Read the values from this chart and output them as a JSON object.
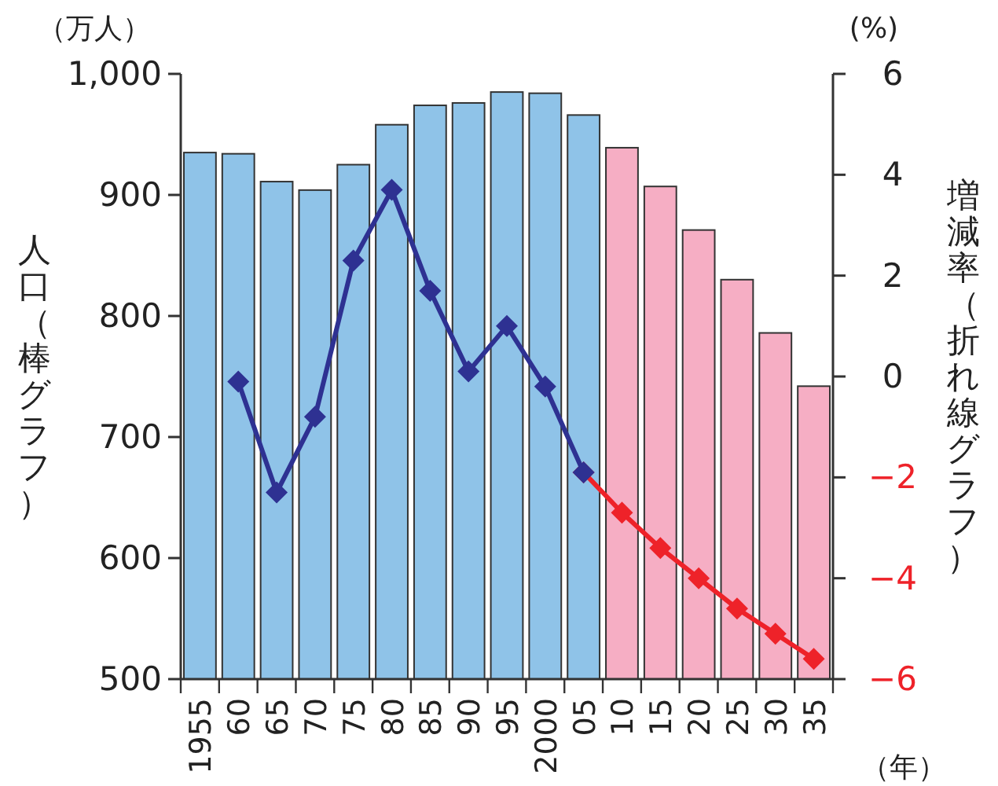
{
  "chart_data": {
    "type": "bar",
    "ylabel": "人口（棒グラフ）",
    "y2label": "増減率（折れ線グラフ）",
    "annotations": [
      "（万人）",
      "(%)",
      "（年）"
    ],
    "categories": [
      "1955",
      "60",
      "65",
      "70",
      "75",
      "80",
      "85",
      "90",
      "95",
      "2000",
      "05",
      "10",
      "15",
      "20",
      "25",
      "30",
      "35"
    ],
    "ylim": [
      500,
      1000
    ],
    "yticks": [
      500,
      600,
      700,
      800,
      900,
      {
        "value": 1000,
        "label": "1,000"
      }
    ],
    "y2lim": [
      -6,
      6
    ],
    "y2ticks": [
      {
        "value": -6,
        "label": "−6"
      },
      {
        "value": -4,
        "label": "−4"
      },
      {
        "value": -2,
        "label": "−2"
      },
      0,
      2,
      4,
      6
    ],
    "marker": "diamond",
    "grid": false,
    "series": [
      {
        "values": [
          935,
          934,
          911,
          904,
          925,
          958,
          974,
          976,
          985,
          984,
          966,
          939,
          907,
          871,
          830,
          786,
          742
        ],
        "colors": [
          "#8fc3e8",
          "#8fc3e8",
          "#8fc3e8",
          "#8fc3e8",
          "#8fc3e8",
          "#8fc3e8",
          "#8fc3e8",
          "#8fc3e8",
          "#8fc3e8",
          "#8fc3e8",
          "#8fc3e8",
          "#f6aec4",
          "#f6aec4",
          "#f6aec4",
          "#f6aec4",
          "#f6aec4",
          "#f6aec4"
        ]
      },
      {
        "type": "line",
        "axis": "y2",
        "color": "#ee2229",
        "values": [
          null,
          null,
          null,
          null,
          null,
          null,
          null,
          null,
          null,
          null,
          -1.9,
          -2.7,
          -3.4,
          -4.0,
          -4.6,
          -5.1,
          -5.6
        ]
      },
      {
        "type": "line",
        "axis": "y2",
        "color": "#2e3192",
        "values": [
          null,
          -0.1,
          -2.3,
          -0.8,
          2.3,
          3.7,
          1.7,
          0.1,
          1.0,
          -0.2,
          -1.9,
          null,
          null,
          null,
          null,
          null,
          null
        ]
      }
    ]
  }
}
